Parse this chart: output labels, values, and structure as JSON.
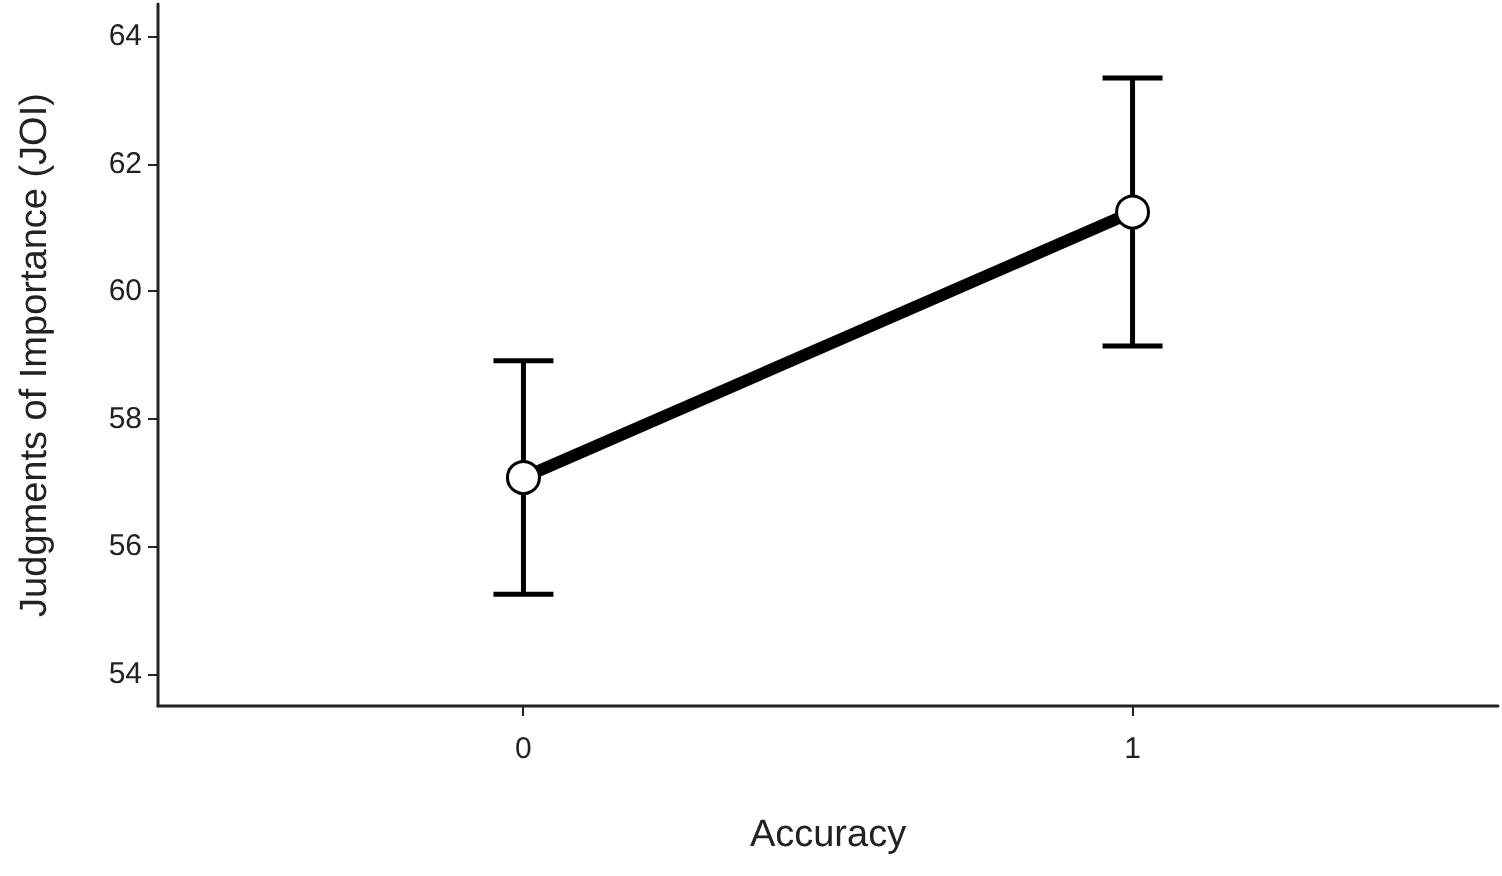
{
  "chart_data": {
    "type": "line",
    "xlabel": "Accuracy",
    "ylabel": "Judgments of Importance (JOI)",
    "x": [
      0,
      1
    ],
    "series": [
      {
        "color": "#000000",
        "values": [
          57.08,
          61.24
        ],
        "errors": [
          1.83,
          2.1
        ]
      }
    ],
    "xlim": [
      -0.6,
      1.6
    ],
    "xticks": [
      0,
      1
    ],
    "ylim": [
      53.5,
      64.5
    ],
    "yticks": [
      54,
      56,
      58,
      60,
      62,
      64
    ],
    "grid": false,
    "marker": "circle",
    "line_style": "solid"
  }
}
